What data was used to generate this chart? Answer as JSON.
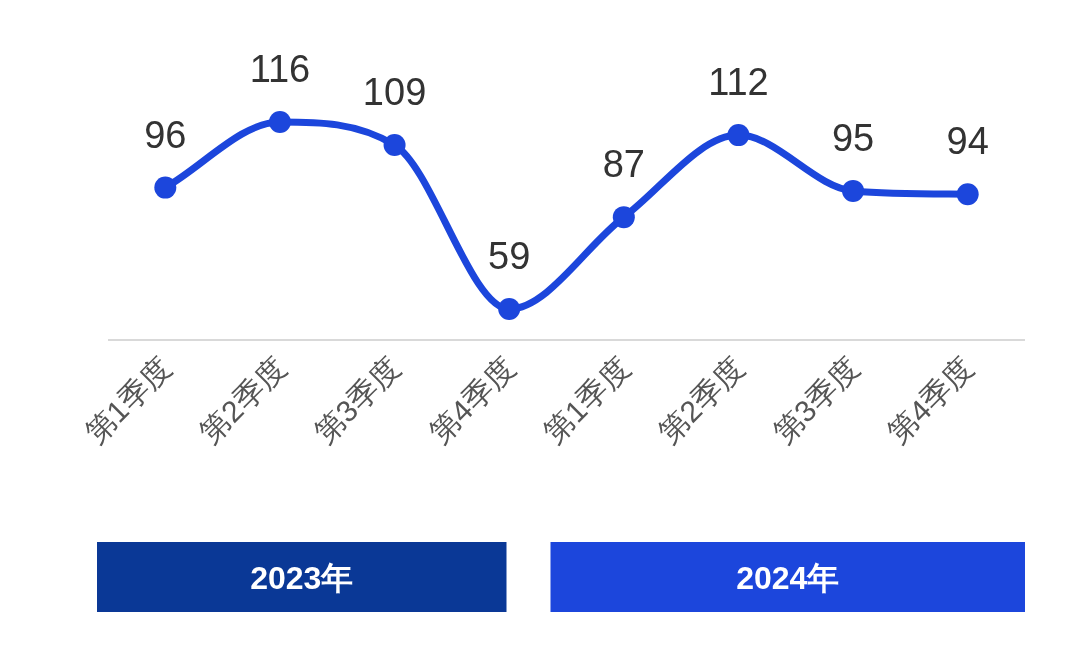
{
  "chart_data": {
    "type": "line",
    "categories": [
      "第1季度",
      "第2季度",
      "第3季度",
      "第4季度",
      "第1季度",
      "第2季度",
      "第3季度",
      "第4季度"
    ],
    "values": [
      96,
      116,
      109,
      59,
      87,
      112,
      95,
      94
    ],
    "color": "#1c46dc",
    "marker": "circle",
    "data_labels": true,
    "annotations": [
      "2023年",
      "2024年"
    ]
  }
}
